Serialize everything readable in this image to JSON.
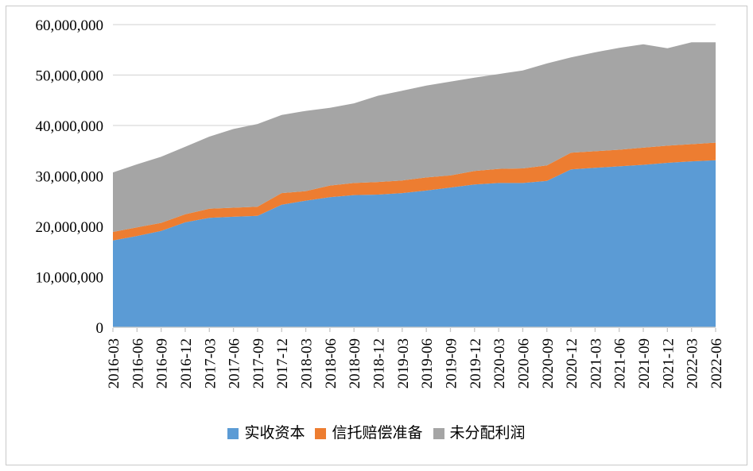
{
  "chart_data": {
    "type": "area",
    "stacked": true,
    "title": "",
    "xlabel": "",
    "ylabel": "",
    "grid": true,
    "legend_position": "bottom",
    "ylim": [
      0,
      60000000
    ],
    "y_ticks": [
      0,
      10000000,
      20000000,
      30000000,
      40000000,
      50000000,
      60000000
    ],
    "y_tick_labels": [
      "0",
      "10,000,000",
      "20,000,000",
      "30,000,000",
      "40,000,000",
      "50,000,000",
      "60,000,000"
    ],
    "categories": [
      "2016-03",
      "2016-06",
      "2016-09",
      "2016-12",
      "2017-03",
      "2017-06",
      "2017-09",
      "2017-12",
      "2018-03",
      "2018-06",
      "2018-09",
      "2018-12",
      "2019-03",
      "2019-06",
      "2019-09",
      "2019-12",
      "2020-03",
      "2020-06",
      "2020-09",
      "2020-12",
      "2021-03",
      "2021-06",
      "2021-09",
      "2021-12",
      "2022-03",
      "2022-06"
    ],
    "series": [
      {
        "name": "实收资本",
        "color": "#5B9BD5",
        "values": [
          17200000,
          18100000,
          19100000,
          20800000,
          21700000,
          21900000,
          22100000,
          24300000,
          25100000,
          25800000,
          26200000,
          26300000,
          26600000,
          27100000,
          27700000,
          28300000,
          28600000,
          28600000,
          29000000,
          31300000,
          31600000,
          31900000,
          32200000,
          32600000,
          32900000,
          33100000
        ]
      },
      {
        "name": "信托赔偿准备",
        "color": "#ED7D31",
        "values": [
          1700000,
          1700000,
          1600000,
          1600000,
          1800000,
          1800000,
          1800000,
          2300000,
          1900000,
          2300000,
          2400000,
          2500000,
          2500000,
          2600000,
          2400000,
          2700000,
          2800000,
          2900000,
          3100000,
          3300000,
          3300000,
          3300000,
          3400000,
          3400000,
          3400000,
          3500000
        ]
      },
      {
        "name": "未分配利润",
        "color": "#A5A5A5",
        "values": [
          11800000,
          12500000,
          13100000,
          13400000,
          14300000,
          15600000,
          16400000,
          15500000,
          15900000,
          15400000,
          15800000,
          17100000,
          17800000,
          18200000,
          18600000,
          18500000,
          18800000,
          19400000,
          20200000,
          18900000,
          19600000,
          20200000,
          20500000,
          19300000,
          20200000,
          19900000
        ]
      }
    ]
  },
  "style": {
    "gridline_color": "#D9D9D9",
    "axis_color": "#C6C6C6",
    "text_color": "#000000",
    "background": "#FFFFFF",
    "border_color": "#C9C9C9"
  }
}
